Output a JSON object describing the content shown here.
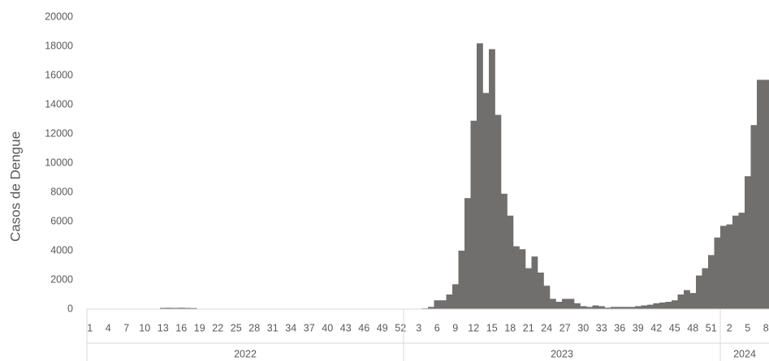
{
  "chart_data": {
    "type": "bar",
    "y_label": "Casos de Dengue",
    "categories": [
      "1",
      null,
      null,
      "4",
      null,
      null,
      "7",
      null,
      null,
      "10",
      null,
      null,
      "13",
      null,
      null,
      "16",
      null,
      null,
      "19",
      null,
      null,
      "22",
      null,
      null,
      "25",
      null,
      null,
      "28",
      null,
      null,
      "31",
      null,
      null,
      "34",
      null,
      null,
      "37",
      null,
      null,
      "40",
      null,
      null,
      "43",
      null,
      null,
      "46",
      null,
      null,
      "49",
      null,
      null,
      "52",
      null,
      null,
      "3",
      null,
      null,
      "6",
      null,
      null,
      "9",
      null,
      null,
      "12",
      null,
      null,
      "15",
      null,
      null,
      "18",
      null,
      null,
      "21",
      null,
      null,
      "24",
      null,
      null,
      "27",
      null,
      null,
      "30",
      null,
      null,
      "33",
      null,
      null,
      "36",
      null,
      null,
      "39",
      null,
      null,
      "42",
      null,
      null,
      "45",
      null,
      null,
      "48",
      null,
      null,
      "51",
      null,
      null,
      "2",
      null,
      null,
      "5",
      null,
      null,
      "8"
    ],
    "groups": [
      {
        "label": "2022",
        "count": 52
      },
      {
        "label": "2023",
        "count": 52
      },
      {
        "label": "2024",
        "count": 8
      }
    ],
    "series": [
      {
        "name": "Casos de Dengue",
        "color": "#716e6e",
        "values": [
          0,
          0,
          0,
          0,
          0,
          0,
          0,
          0,
          0,
          0,
          0,
          0,
          80,
          90,
          80,
          90,
          80,
          70,
          0,
          0,
          0,
          0,
          0,
          0,
          0,
          0,
          0,
          0,
          0,
          0,
          0,
          0,
          0,
          0,
          0,
          0,
          0,
          0,
          0,
          0,
          0,
          0,
          0,
          0,
          0,
          0,
          0,
          0,
          0,
          0,
          0,
          0,
          0,
          0,
          0,
          50,
          150,
          600,
          600,
          1000,
          1700,
          4000,
          7600,
          12900,
          18200,
          14800,
          17800,
          13300,
          7900,
          6400,
          4300,
          4100,
          2800,
          3600,
          2500,
          1600,
          700,
          500,
          700,
          700,
          400,
          200,
          150,
          250,
          200,
          100,
          150,
          150,
          150,
          150,
          200,
          250,
          300,
          400,
          450,
          500,
          600,
          1000,
          1300,
          1100,
          2300,
          2800,
          3700,
          4900,
          5700,
          5800,
          6400,
          6600,
          9100,
          12600,
          15700,
          15700
        ]
      }
    ],
    "ylim": [
      0,
      20000
    ],
    "yticks": [
      0,
      2000,
      4000,
      6000,
      8000,
      10000,
      12000,
      14000,
      16000,
      18000,
      20000
    ],
    "grid": false
  }
}
